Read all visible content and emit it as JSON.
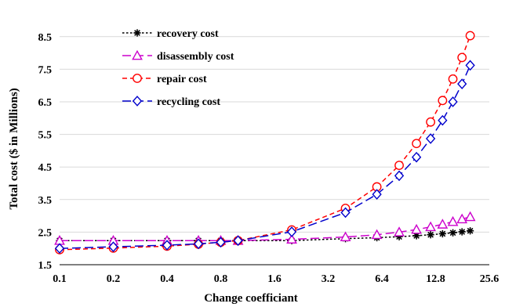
{
  "chart_data": {
    "type": "line",
    "xscale": "log2",
    "xlabel": "Change coefficiant",
    "ylabel": "Total cost ($ in Millions)",
    "title": "",
    "xlim": [
      0.1,
      25.6
    ],
    "ylim": [
      1.5,
      9.0
    ],
    "x_ticks": [
      "0.1",
      "0.2",
      "0.4",
      "0.8",
      "1.6",
      "3.2",
      "6.4",
      "12.8",
      "25.6"
    ],
    "y_ticks": [
      "1.5",
      "2.5",
      "3.5",
      "4.5",
      "5.5",
      "6.5",
      "7.5",
      "8.5"
    ],
    "grid": "horizontal",
    "legend_position": "top-left",
    "series": [
      {
        "name": "recovery cost",
        "color": "#000000",
        "marker": "asterisk",
        "dash": "dotted",
        "points": [
          [
            0.1,
            2.24
          ],
          [
            0.2,
            2.24
          ],
          [
            0.4,
            2.24
          ],
          [
            0.6,
            2.24
          ],
          [
            0.8,
            2.24
          ],
          [
            1.0,
            2.24
          ],
          [
            2.0,
            2.24
          ],
          [
            4.0,
            2.3
          ],
          [
            6.0,
            2.33
          ],
          [
            8.0,
            2.36
          ],
          [
            10.0,
            2.39
          ],
          [
            12.0,
            2.42
          ],
          [
            14.0,
            2.45
          ],
          [
            16.0,
            2.48
          ],
          [
            18.0,
            2.51
          ],
          [
            20.0,
            2.54
          ]
        ]
      },
      {
        "name": "disassembly cost",
        "color": "#cc00cc",
        "marker": "triangle",
        "dash": "longdash",
        "points": [
          [
            0.1,
            2.24
          ],
          [
            0.2,
            2.24
          ],
          [
            0.4,
            2.24
          ],
          [
            0.6,
            2.24
          ],
          [
            0.8,
            2.24
          ],
          [
            1.0,
            2.24
          ],
          [
            2.0,
            2.28
          ],
          [
            4.0,
            2.35
          ],
          [
            6.0,
            2.42
          ],
          [
            8.0,
            2.5
          ],
          [
            10.0,
            2.58
          ],
          [
            12.0,
            2.66
          ],
          [
            14.0,
            2.74
          ],
          [
            16.0,
            2.82
          ],
          [
            18.0,
            2.9
          ],
          [
            20.0,
            2.97
          ]
        ]
      },
      {
        "name": "repair cost",
        "color": "#ff0000",
        "marker": "circle",
        "dash": "dashed",
        "points": [
          [
            0.1,
            1.96
          ],
          [
            0.2,
            2.01
          ],
          [
            0.4,
            2.07
          ],
          [
            0.6,
            2.13
          ],
          [
            0.8,
            2.19
          ],
          [
            1.0,
            2.24
          ],
          [
            2.0,
            2.57
          ],
          [
            4.0,
            3.23
          ],
          [
            6.0,
            3.89
          ],
          [
            8.0,
            4.55
          ],
          [
            10.0,
            5.22
          ],
          [
            12.0,
            5.88
          ],
          [
            14.0,
            6.54
          ],
          [
            16.0,
            7.2
          ],
          [
            18.0,
            7.86
          ],
          [
            20.0,
            8.53
          ]
        ]
      },
      {
        "name": "recycling cost",
        "color": "#0000cc",
        "marker": "diamond",
        "dash": "longdash",
        "points": [
          [
            0.1,
            2.0
          ],
          [
            0.2,
            2.05
          ],
          [
            0.4,
            2.1
          ],
          [
            0.6,
            2.14
          ],
          [
            0.8,
            2.19
          ],
          [
            1.0,
            2.24
          ],
          [
            2.0,
            2.51
          ],
          [
            4.0,
            3.1
          ],
          [
            6.0,
            3.66
          ],
          [
            8.0,
            4.23
          ],
          [
            10.0,
            4.8
          ],
          [
            12.0,
            5.37
          ],
          [
            14.0,
            5.93
          ],
          [
            16.0,
            6.5
          ],
          [
            18.0,
            7.05
          ],
          [
            20.0,
            7.62
          ]
        ]
      }
    ]
  }
}
